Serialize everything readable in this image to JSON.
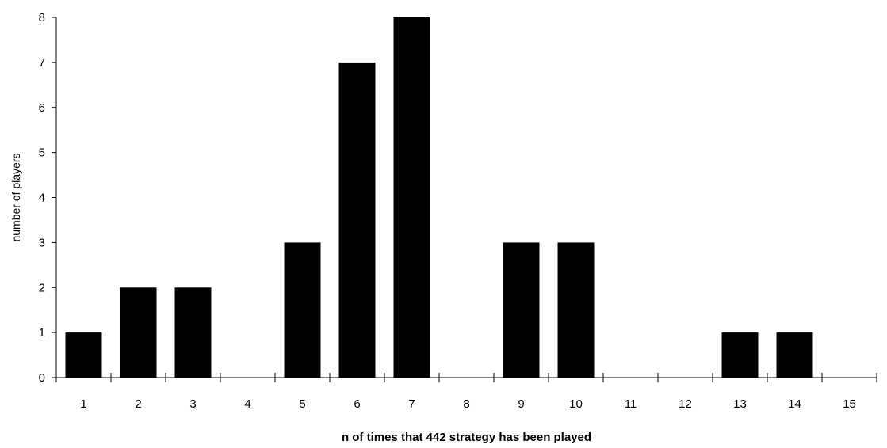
{
  "chart_data": {
    "type": "bar",
    "categories": [
      "1",
      "2",
      "3",
      "4",
      "5",
      "6",
      "7",
      "8",
      "9",
      "10",
      "11",
      "12",
      "13",
      "14",
      "15"
    ],
    "values": [
      1,
      2,
      2,
      0,
      3,
      7,
      8,
      0,
      3,
      3,
      0,
      0,
      1,
      1,
      0
    ],
    "title": "",
    "xlabel": "n of times that 442 strategy has been played",
    "ylabel": "number of players",
    "ylim": [
      0,
      8
    ],
    "yticks": [
      0,
      1,
      2,
      3,
      4,
      5,
      6,
      7,
      8
    ],
    "grid": false,
    "legend": "none",
    "bar_color": "#000000"
  }
}
